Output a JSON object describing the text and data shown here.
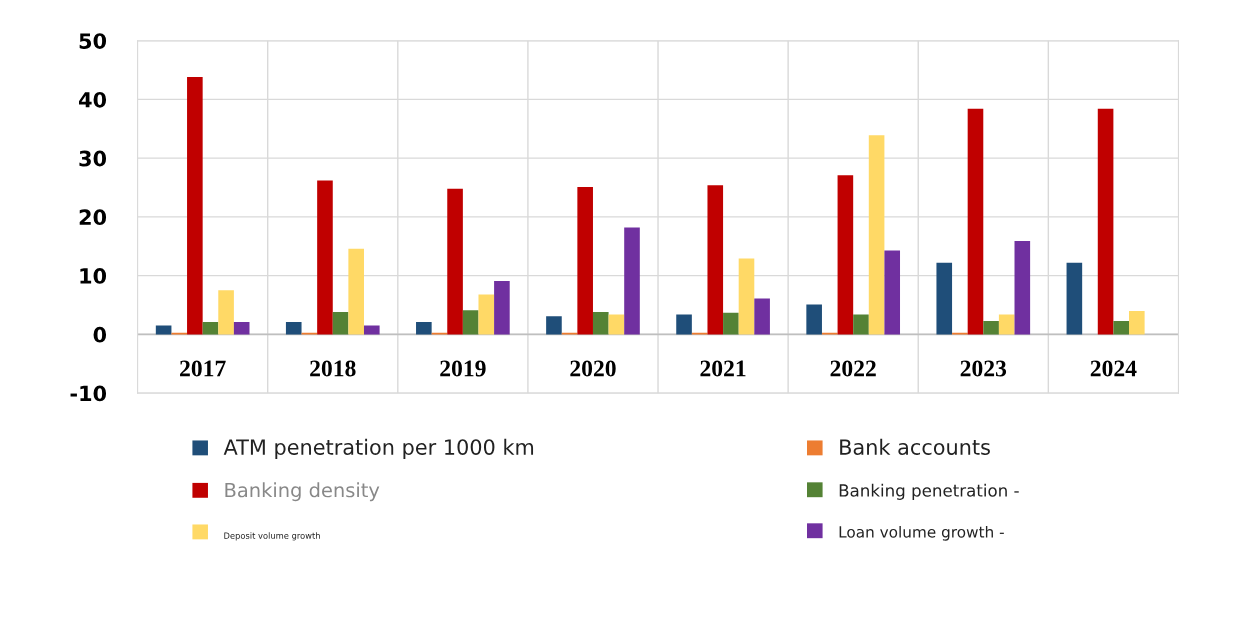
{
  "chart_data": {
    "type": "bar",
    "categories": [
      "2017",
      "2018",
      "2019",
      "2020",
      "2021",
      "2022",
      "2023",
      "2024"
    ],
    "series": [
      {
        "name": "ATM penetration per 1000 km",
        "color": "#1f4e79",
        "values": [
          1.5,
          2.1,
          2.1,
          3.1,
          3.4,
          5.1,
          12.2,
          12.2
        ]
      },
      {
        "name": "Bank accounts",
        "color": "#ed7d31",
        "values": [
          0.3,
          0.3,
          0.3,
          0.3,
          0.3,
          0.3,
          0.3,
          null
        ]
      },
      {
        "name": "Banking density",
        "color": "#c00000",
        "values": [
          43.8,
          26.2,
          24.8,
          25.1,
          25.4,
          27.1,
          38.4,
          38.4
        ]
      },
      {
        "name": "Banking penetration -",
        "color": "#548235",
        "values": [
          2.1,
          3.8,
          4.1,
          3.8,
          3.7,
          3.4,
          2.3,
          2.3
        ]
      },
      {
        "name": "Deposit volume growth",
        "color": "#ffd966",
        "values": [
          7.5,
          14.6,
          6.8,
          3.4,
          12.9,
          33.9,
          3.4,
          4.0
        ]
      },
      {
        "name": "Loan volume growth -",
        "color": "#7030a0",
        "values": [
          2.1,
          1.5,
          9.1,
          18.2,
          6.1,
          14.3,
          15.9,
          null
        ]
      }
    ],
    "ylim": [
      -10,
      50
    ],
    "yticks": [
      -10,
      0,
      10,
      20,
      30,
      40,
      50
    ],
    "grid": true,
    "legend": "bottom"
  }
}
